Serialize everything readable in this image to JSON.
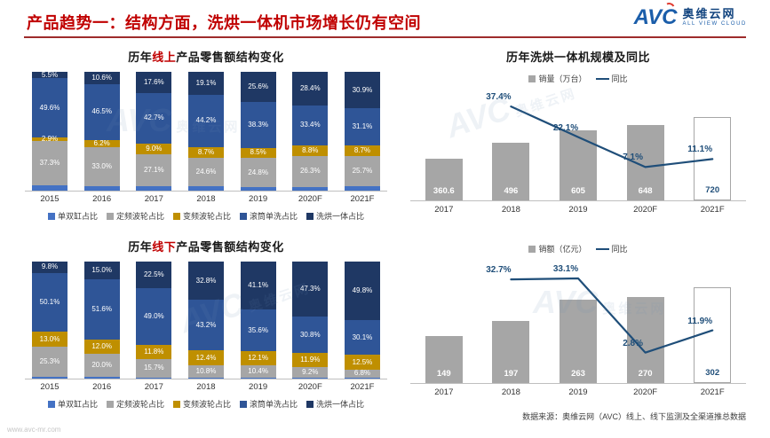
{
  "header": {
    "title": "产品趋势一：结构方面，洗烘一体机市场增长仍有空间",
    "logo": {
      "abbr": "AVC",
      "cn": "奥维云网",
      "en": "ALL VIEW CLOUD"
    }
  },
  "watermark": {
    "abbr": "AVC",
    "cn": "奥维云网",
    "url": "www.avc-mr.com"
  },
  "footer": {
    "source": "数据来源：奥维云网（AVC）线上、线下监测及全渠道推总数据",
    "url": "www.avc-mr.com"
  },
  "chart_data": [
    {
      "id": "online_structure",
      "type": "stacked-bar",
      "title_parts": {
        "prefix": "历年",
        "highlight": "线上",
        "suffix": "产品零售额结构变化"
      },
      "unit": "%",
      "ylim": [
        0,
        100
      ],
      "legend_position": "bottom",
      "categories": [
        "2015",
        "2016",
        "2017",
        "2018",
        "2019",
        "2020F",
        "2021F"
      ],
      "series": [
        {
          "name": "单双缸占比",
          "color": "#4472C4",
          "data_labels": false,
          "values": [
            4.7,
            3.7,
            3.6,
            3.4,
            2.8,
            3.1,
            3.6
          ]
        },
        {
          "name": "定频波轮占比",
          "color": "#A6A6A6",
          "values": [
            37.3,
            33.0,
            27.1,
            24.6,
            24.8,
            26.3,
            25.7
          ]
        },
        {
          "name": "变频波轮占比",
          "color": "#BF8F00",
          "values": [
            2.9,
            6.2,
            9.0,
            8.7,
            8.5,
            8.8,
            8.7
          ]
        },
        {
          "name": "滚筒单洗占比",
          "color": "#2F5597",
          "values": [
            49.6,
            46.5,
            42.7,
            44.2,
            38.3,
            33.4,
            31.1
          ]
        },
        {
          "name": "洗烘一体占比",
          "color": "#1F3864",
          "values": [
            5.5,
            10.6,
            17.6,
            19.1,
            25.6,
            28.4,
            30.9
          ]
        }
      ]
    },
    {
      "id": "offline_structure",
      "type": "stacked-bar",
      "title_parts": {
        "prefix": "历年",
        "highlight": "线下",
        "suffix": "产品零售额结构变化"
      },
      "unit": "%",
      "ylim": [
        0,
        100
      ],
      "legend_position": "bottom",
      "categories": [
        "2015",
        "2016",
        "2017",
        "2018",
        "2019",
        "2020F",
        "2021F"
      ],
      "series": [
        {
          "name": "单双缸占比",
          "color": "#4472C4",
          "data_labels": false,
          "values": [
            1.8,
            1.4,
            1.0,
            0.8,
            0.8,
            0.8,
            0.8
          ]
        },
        {
          "name": "定频波轮占比",
          "color": "#A6A6A6",
          "values": [
            25.3,
            20.0,
            15.7,
            10.8,
            10.4,
            9.2,
            6.8
          ]
        },
        {
          "name": "变频波轮占比",
          "color": "#BF8F00",
          "values": [
            13.0,
            12.0,
            11.8,
            12.4,
            12.1,
            11.9,
            12.5
          ]
        },
        {
          "name": "滚筒单洗占比",
          "color": "#2F5597",
          "values": [
            50.1,
            51.6,
            49.0,
            43.2,
            35.6,
            30.8,
            30.1
          ]
        },
        {
          "name": "洗烘一体占比",
          "color": "#1F3864",
          "values": [
            9.8,
            15.0,
            22.5,
            32.8,
            41.1,
            47.3,
            49.8
          ]
        }
      ]
    },
    {
      "id": "volume_yoy",
      "type": "bar-line",
      "title": "历年洗烘一体机规模及同比",
      "categories": [
        "2017",
        "2018",
        "2019",
        "2020F",
        "2021F"
      ],
      "bar_name": "销量（万台）",
      "bar_color": "#A6A6A6",
      "bars": [
        360.6,
        496,
        605,
        648,
        720
      ],
      "bar_labels": [
        "360.6",
        "496",
        "605",
        "648",
        "720"
      ],
      "bar_axis_max": 720,
      "forecast_last": true,
      "line_name": "同比",
      "line_color": "#1F4E79",
      "y2_min": -10,
      "y2_max": 45,
      "line_points": [
        {
          "i": 1,
          "value": 37.4,
          "label": "37.4%"
        },
        {
          "i": 2,
          "value": 22.1,
          "label": "22.1%"
        },
        {
          "i": 3,
          "value": 7.1,
          "label": "7.1%"
        },
        {
          "i": 4,
          "value": 11.1,
          "label": "11.1%"
        }
      ]
    },
    {
      "id": "amount_yoy",
      "type": "bar-line",
      "title": "",
      "categories": [
        "2017",
        "2018",
        "2019",
        "2020F",
        "2021F"
      ],
      "bar_name": "销额（亿元）",
      "bar_color": "#A6A6A6",
      "bars": [
        149,
        197,
        263,
        270,
        302
      ],
      "bar_labels": [
        "149",
        "197",
        "263",
        "270",
        "302"
      ],
      "bar_axis_max": 720,
      "bar_axis_note": "scaled to tallest bar",
      "forecast_last": true,
      "line_name": "同比",
      "line_color": "#1F4E79",
      "y2_min": -10,
      "y2_max": 40,
      "line_points": [
        {
          "i": 1,
          "value": 32.7,
          "label": "32.7%"
        },
        {
          "i": 2,
          "value": 33.1,
          "label": "33.1%"
        },
        {
          "i": 3,
          "value": 2.8,
          "label": "2.8%"
        },
        {
          "i": 4,
          "value": 11.9,
          "label": "11.9%"
        }
      ]
    }
  ]
}
